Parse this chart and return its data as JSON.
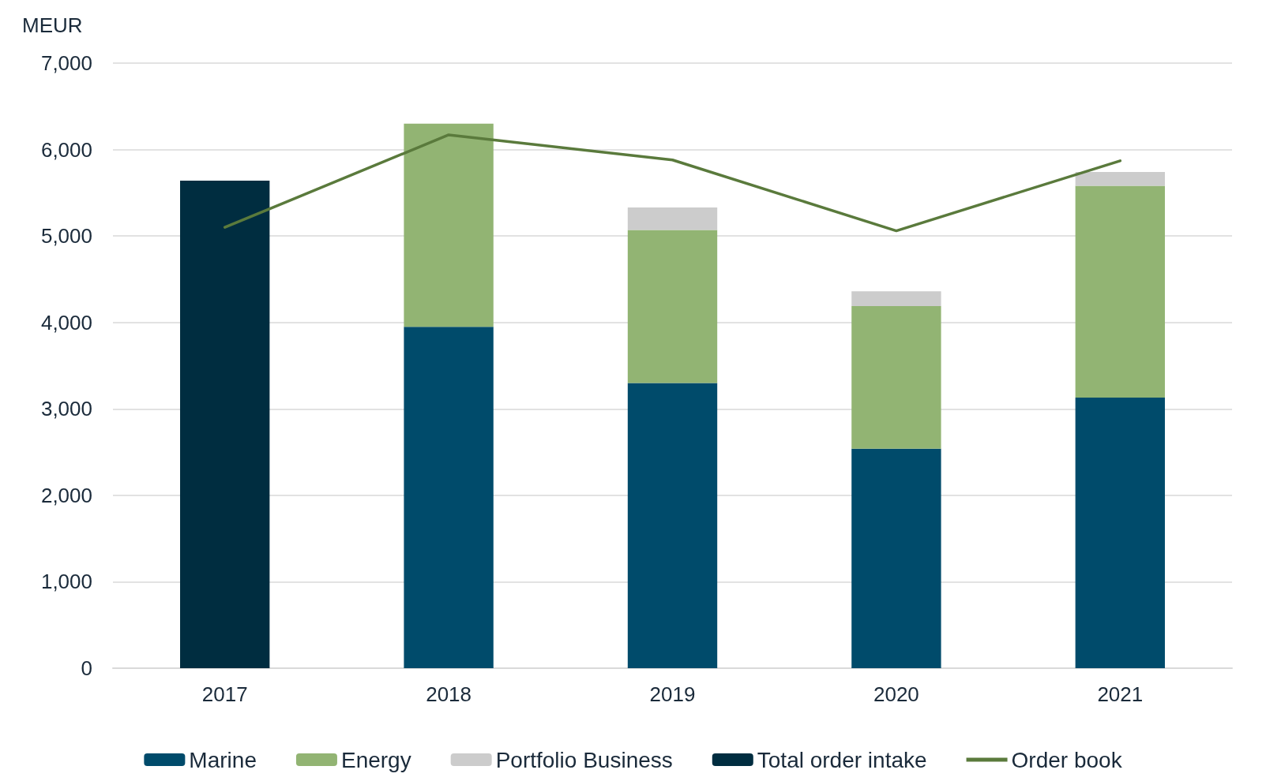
{
  "chart_data": {
    "type": "bar",
    "stacked": true,
    "ylabel": "MEUR",
    "categories": [
      "2017",
      "2018",
      "2019",
      "2020",
      "2021"
    ],
    "series": [
      {
        "name": "Marine",
        "color": "#004b6b",
        "values": [
          null,
          3950,
          3300,
          2540,
          3130
        ]
      },
      {
        "name": "Energy",
        "color": "#92b473",
        "values": [
          null,
          2350,
          1770,
          1650,
          2450
        ]
      },
      {
        "name": "Portfolio Business",
        "color": "#cccccc",
        "values": [
          null,
          null,
          260,
          170,
          160
        ]
      },
      {
        "name": "Total order intake",
        "color": "#002d40",
        "values": [
          5640,
          null,
          null,
          null,
          null
        ]
      },
      {
        "name": "Order book",
        "type": "line",
        "color": "#5a7a3c",
        "values": [
          5100,
          6170,
          5880,
          5060,
          5870
        ]
      }
    ],
    "ylim": [
      0,
      7000
    ],
    "yticks": [
      0,
      {
        "value": 1000,
        "label": "1,000"
      },
      {
        "value": 2000,
        "label": "2,000"
      },
      {
        "value": 3000,
        "label": "3,000"
      },
      {
        "value": 4000,
        "label": "4,000"
      },
      {
        "value": 5000,
        "label": "5,000"
      },
      {
        "value": 6000,
        "label": "6,000"
      },
      {
        "value": 7000,
        "label": "7,000"
      }
    ],
    "grid": "y",
    "legend": "bottom",
    "marker": "none",
    "line_style": "solid"
  }
}
